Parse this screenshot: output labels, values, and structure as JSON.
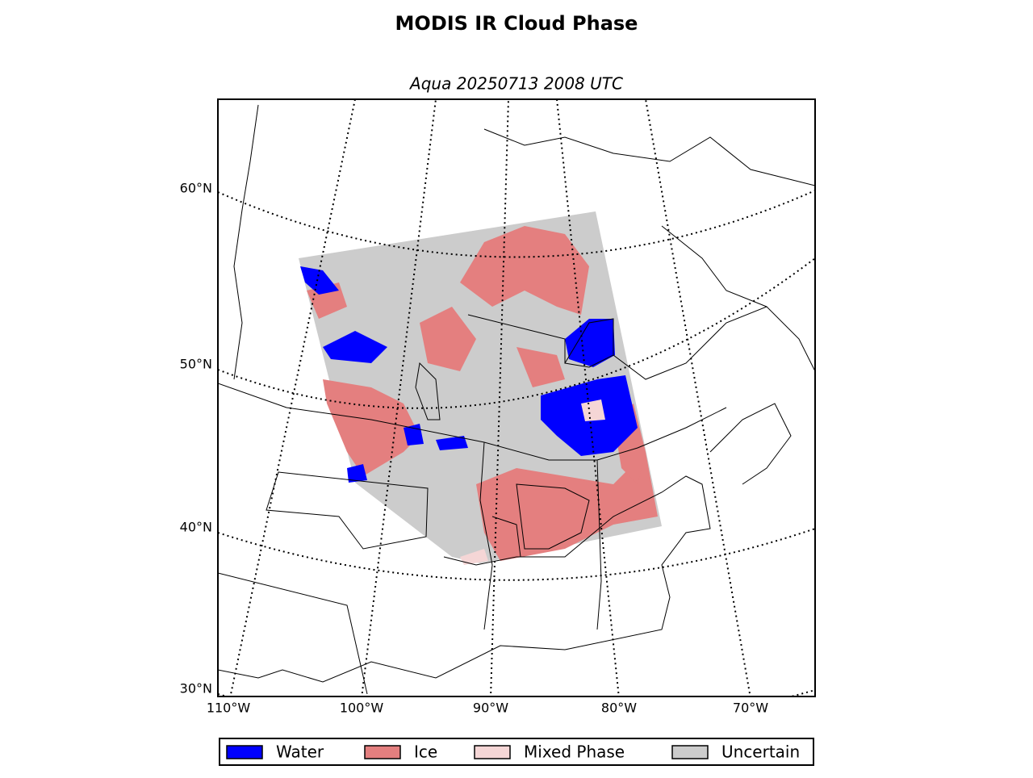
{
  "title": "MODIS IR Cloud Phase",
  "subtitle": "Aqua 20250713 2008 UTC",
  "lat_labels": [
    "60°N",
    "50°N",
    "40°N",
    "30°N"
  ],
  "lon_labels": [
    "110°W",
    "100°W",
    "90°W",
    "80°W",
    "70°W"
  ],
  "legend": [
    {
      "label": "Water",
      "color": "#0000ff"
    },
    {
      "label": "Ice",
      "color": "#e47f7f"
    },
    {
      "label": "Mixed Phase",
      "color": "#f5d6d6"
    },
    {
      "label": "Uncertain",
      "color": "#cccccc"
    }
  ]
}
